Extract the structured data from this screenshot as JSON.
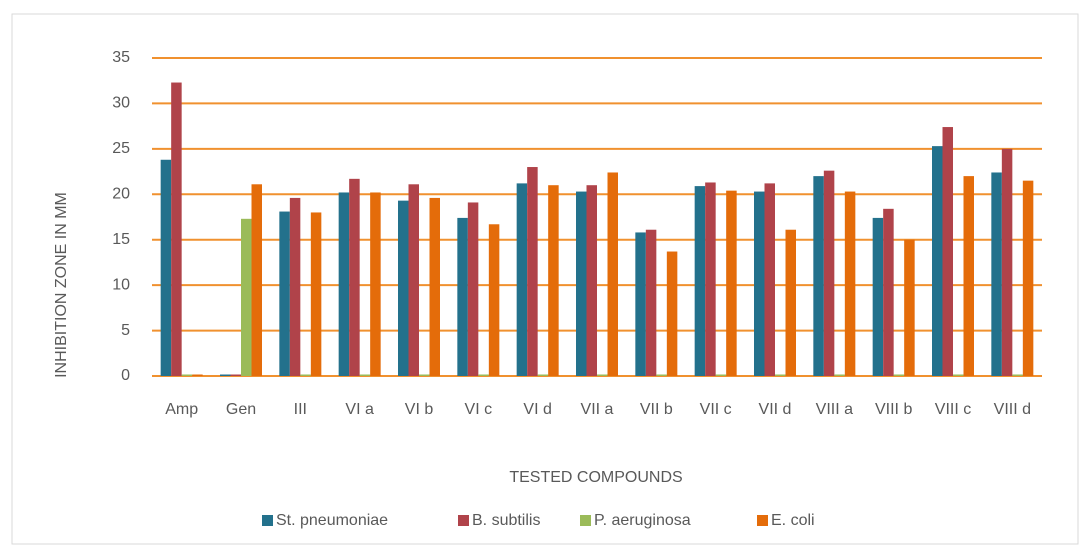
{
  "chart_data": {
    "type": "bar",
    "y_label": "INHIBITION ZONE IN MM",
    "x_label": "TESTED COMPOUNDS",
    "categories": [
      "Amp",
      "Gen",
      "III",
      "VI a",
      "VI b",
      "VI c",
      "VI d",
      "VII a",
      "VII b",
      "VII c",
      "VII d",
      "VIII a",
      "VIII b",
      "VIII c",
      "VIII d"
    ],
    "series": [
      {
        "name": "St. pneumoniae",
        "color": "#23718c",
        "values": [
          23.8,
          0,
          18.1,
          20.2,
          19.3,
          17.4,
          21.2,
          20.3,
          15.8,
          20.9,
          20.3,
          22.0,
          17.4,
          25.3,
          22.4
        ]
      },
      {
        "name": "B. subtilis",
        "color": "#b0434a",
        "values": [
          32.3,
          0,
          19.6,
          21.7,
          21.1,
          19.1,
          23.0,
          21.0,
          16.1,
          21.3,
          21.2,
          22.6,
          18.4,
          27.4,
          25.0
        ]
      },
      {
        "name": "P. aeruginosa",
        "color": "#9bbb59",
        "values": [
          0,
          17.3,
          0,
          0,
          0,
          0,
          0,
          0,
          0,
          0,
          0,
          0,
          0,
          0,
          0
        ]
      },
      {
        "name": "E. coli",
        "color": "#e46c0a",
        "values": [
          0,
          21.1,
          18.0,
          20.2,
          19.6,
          16.7,
          21.0,
          22.4,
          13.7,
          20.4,
          16.1,
          20.3,
          15.0,
          22.0,
          21.5
        ]
      }
    ],
    "ylim": [
      0,
      35
    ],
    "yticks": [
      0,
      5,
      10,
      15,
      20,
      25,
      30,
      35
    ],
    "grid": true,
    "grid_color": "#f0912f",
    "legend": "bottom"
  }
}
